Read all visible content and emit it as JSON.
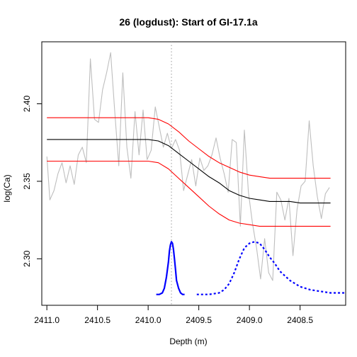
{
  "chart_data": {
    "type": "line",
    "title": "26 (logdust): Start of GI-17.1a",
    "xlabel": "Depth (m)",
    "ylabel": "log(Ca)",
    "x_reversed": true,
    "xlim": [
      2411.05,
      2408.05
    ],
    "ylim": [
      2.27,
      2.44
    ],
    "x_ticks": [
      2411.0,
      2410.5,
      2410.0,
      2409.5,
      2409.0,
      2408.5
    ],
    "x_tick_labels": [
      "2411.0",
      "2410.5",
      "2410.0",
      "2409.5",
      "2409.0",
      "2408.5"
    ],
    "y_ticks": [
      2.3,
      2.35,
      2.4
    ],
    "y_tick_labels": [
      "2.30",
      "2.35",
      "2.40"
    ],
    "grid": false,
    "marker_line": {
      "x": 2409.77,
      "style": "dotted",
      "color": "#aaaaaa"
    },
    "series": [
      {
        "role": "data",
        "color": "#bebebe",
        "style": "solid",
        "x": [
          2411.0,
          2410.97,
          2410.93,
          2410.89,
          2410.85,
          2410.81,
          2410.77,
          2410.73,
          2410.69,
          2410.65,
          2410.61,
          2410.57,
          2410.53,
          2410.49,
          2410.45,
          2410.41,
          2410.37,
          2410.33,
          2410.29,
          2410.25,
          2410.21,
          2410.17,
          2410.13,
          2410.09,
          2410.05,
          2410.01,
          2409.97,
          2409.93,
          2409.89,
          2409.85,
          2409.81,
          2409.77,
          2409.73,
          2409.69,
          2409.65,
          2409.61,
          2409.57,
          2409.53,
          2409.49,
          2409.45,
          2409.41,
          2409.37,
          2409.33,
          2409.29,
          2409.25,
          2409.21,
          2409.17,
          2409.13,
          2409.09,
          2409.05,
          2409.01,
          2408.97,
          2408.93,
          2408.89,
          2408.85,
          2408.81,
          2408.77,
          2408.73,
          2408.69,
          2408.65,
          2408.61,
          2408.57,
          2408.53,
          2408.49,
          2408.45,
          2408.41,
          2408.37,
          2408.33,
          2408.29,
          2408.25,
          2408.21
        ],
        "y": [
          2.366,
          2.338,
          2.344,
          2.355,
          2.362,
          2.349,
          2.36,
          2.348,
          2.367,
          2.372,
          2.362,
          2.429,
          2.39,
          2.388,
          2.409,
          2.42,
          2.433,
          2.395,
          2.36,
          2.42,
          2.372,
          2.352,
          2.395,
          2.367,
          2.396,
          2.364,
          2.37,
          2.398,
          2.385,
          2.372,
          2.381,
          2.371,
          2.377,
          2.37,
          2.344,
          2.354,
          2.364,
          2.347,
          2.365,
          2.357,
          2.36,
          2.367,
          2.378,
          2.365,
          2.355,
          2.343,
          2.377,
          2.375,
          2.321,
          2.383,
          2.343,
          2.323,
          2.307,
          2.287,
          2.313,
          2.291,
          2.286,
          2.343,
          2.338,
          2.325,
          2.339,
          2.302,
          2.332,
          2.347,
          2.35,
          2.389,
          2.36,
          2.34,
          2.326,
          2.342,
          2.346
        ]
      },
      {
        "role": "fit",
        "color": "#000000",
        "style": "solid",
        "x": [
          2411.0,
          2410.1,
          2410.0,
          2409.9,
          2409.8,
          2409.7,
          2409.6,
          2409.5,
          2409.4,
          2409.3,
          2409.2,
          2409.1,
          2409.0,
          2408.9,
          2408.8,
          2408.7,
          2408.6,
          2408.5,
          2408.4,
          2408.2
        ],
        "y": [
          2.377,
          2.377,
          2.377,
          2.376,
          2.373,
          2.368,
          2.363,
          2.358,
          2.353,
          2.349,
          2.344,
          2.341,
          2.339,
          2.338,
          2.337,
          2.337,
          2.337,
          2.336,
          2.336,
          2.336
        ]
      },
      {
        "role": "upper-bound",
        "color": "#ff0000",
        "style": "solid",
        "x": [
          2411.0,
          2410.1,
          2410.0,
          2409.9,
          2409.8,
          2409.7,
          2409.6,
          2409.5,
          2409.4,
          2409.3,
          2409.2,
          2409.1,
          2409.0,
          2408.9,
          2408.8,
          2408.7,
          2408.6,
          2408.5,
          2408.4,
          2408.2
        ],
        "y": [
          2.391,
          2.391,
          2.391,
          2.39,
          2.387,
          2.382,
          2.376,
          2.371,
          2.366,
          2.362,
          2.359,
          2.356,
          2.354,
          2.353,
          2.352,
          2.352,
          2.352,
          2.352,
          2.352,
          2.352
        ]
      },
      {
        "role": "lower-bound",
        "color": "#ff0000",
        "style": "solid",
        "x": [
          2411.0,
          2410.1,
          2410.0,
          2409.9,
          2409.8,
          2409.7,
          2409.6,
          2409.5,
          2409.4,
          2409.3,
          2409.2,
          2409.1,
          2409.0,
          2408.9,
          2408.8,
          2408.7,
          2408.6,
          2408.5,
          2408.4,
          2408.2
        ],
        "y": [
          2.363,
          2.363,
          2.363,
          2.362,
          2.358,
          2.352,
          2.346,
          2.34,
          2.334,
          2.329,
          2.325,
          2.323,
          2.322,
          2.321,
          2.321,
          2.321,
          2.321,
          2.321,
          2.321,
          2.321
        ]
      },
      {
        "role": "onset-density",
        "color": "#0000ff",
        "style": "solid",
        "x": [
          2409.92,
          2409.89,
          2409.86,
          2409.84,
          2409.82,
          2409.8,
          2409.79,
          2409.78,
          2409.77,
          2409.76,
          2409.75,
          2409.74,
          2409.73,
          2409.72,
          2409.7,
          2409.68,
          2409.66,
          2409.64
        ],
        "y": [
          2.277,
          2.277,
          2.278,
          2.281,
          2.288,
          2.298,
          2.305,
          2.309,
          2.311,
          2.31,
          2.306,
          2.3,
          2.293,
          2.286,
          2.281,
          2.278,
          2.277,
          2.277
        ]
      },
      {
        "role": "duration-density",
        "color": "#0000ff",
        "style": "dashed",
        "x": [
          2409.52,
          2409.4,
          2409.3,
          2409.25,
          2409.2,
          2409.15,
          2409.1,
          2409.05,
          2409.0,
          2408.95,
          2408.9,
          2408.85,
          2408.8,
          2408.75,
          2408.7,
          2408.6,
          2408.5,
          2408.4,
          2408.3,
          2408.2,
          2408.05
        ],
        "y": [
          2.277,
          2.277,
          2.278,
          2.28,
          2.284,
          2.291,
          2.3,
          2.307,
          2.31,
          2.311,
          2.31,
          2.306,
          2.301,
          2.297,
          2.292,
          2.286,
          2.282,
          2.28,
          2.279,
          2.278,
          2.278
        ]
      }
    ]
  }
}
